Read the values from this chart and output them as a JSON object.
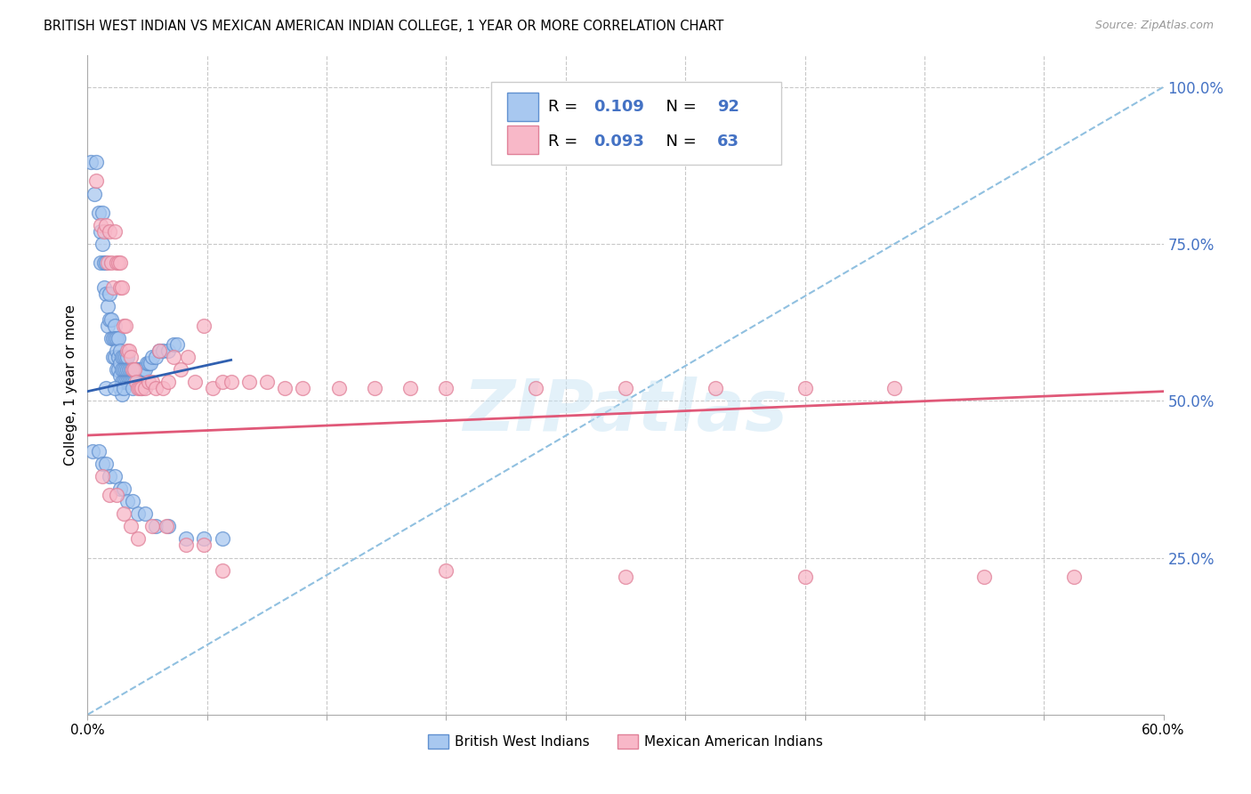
{
  "title": "BRITISH WEST INDIAN VS MEXICAN AMERICAN INDIAN COLLEGE, 1 YEAR OR MORE CORRELATION CHART",
  "source": "Source: ZipAtlas.com",
  "ylabel": "College, 1 year or more",
  "xmin": 0.0,
  "xmax": 0.6,
  "ymin": 0.0,
  "ymax": 1.05,
  "color_blue": "#A8C8F0",
  "color_pink": "#F8B8C8",
  "color_blue_edge": "#6090D0",
  "color_pink_edge": "#E08098",
  "color_trendline_blue": "#3060B0",
  "color_trendline_pink": "#E05878",
  "color_dashed": "#90C0E0",
  "color_grid": "#C8C8C8",
  "color_right_axis": "#4472C4",
  "watermark": "ZIPatlas",
  "label1": "British West Indians",
  "label2": "Mexican American Indians",
  "trendline_bwi_x0": 0.0,
  "trendline_bwi_y0": 0.515,
  "trendline_bwi_x1": 0.08,
  "trendline_bwi_y1": 0.565,
  "trendline_mai_x0": 0.0,
  "trendline_mai_y0": 0.445,
  "trendline_mai_x1": 0.6,
  "trendline_mai_y1": 0.515,
  "bwi_x": [
    0.002,
    0.004,
    0.005,
    0.006,
    0.007,
    0.007,
    0.008,
    0.008,
    0.009,
    0.009,
    0.01,
    0.01,
    0.011,
    0.011,
    0.012,
    0.012,
    0.013,
    0.013,
    0.014,
    0.014,
    0.015,
    0.015,
    0.015,
    0.016,
    0.016,
    0.016,
    0.017,
    0.017,
    0.017,
    0.018,
    0.018,
    0.018,
    0.018,
    0.019,
    0.019,
    0.019,
    0.019,
    0.02,
    0.02,
    0.02,
    0.021,
    0.021,
    0.021,
    0.022,
    0.022,
    0.022,
    0.023,
    0.023,
    0.024,
    0.024,
    0.025,
    0.025,
    0.026,
    0.026,
    0.027,
    0.028,
    0.029,
    0.03,
    0.031,
    0.032,
    0.033,
    0.034,
    0.035,
    0.036,
    0.038,
    0.04,
    0.042,
    0.045,
    0.048,
    0.05,
    0.003,
    0.006,
    0.008,
    0.01,
    0.012,
    0.015,
    0.018,
    0.02,
    0.022,
    0.025,
    0.028,
    0.032,
    0.038,
    0.045,
    0.055,
    0.065,
    0.075,
    0.01,
    0.015,
    0.02,
    0.025,
    0.03
  ],
  "bwi_y": [
    0.88,
    0.83,
    0.88,
    0.8,
    0.77,
    0.72,
    0.8,
    0.75,
    0.72,
    0.68,
    0.72,
    0.67,
    0.65,
    0.62,
    0.67,
    0.63,
    0.63,
    0.6,
    0.6,
    0.57,
    0.62,
    0.6,
    0.57,
    0.6,
    0.58,
    0.55,
    0.6,
    0.57,
    0.55,
    0.58,
    0.56,
    0.54,
    0.52,
    0.57,
    0.55,
    0.53,
    0.51,
    0.57,
    0.55,
    0.53,
    0.57,
    0.55,
    0.53,
    0.57,
    0.55,
    0.53,
    0.55,
    0.53,
    0.55,
    0.53,
    0.55,
    0.53,
    0.55,
    0.53,
    0.55,
    0.55,
    0.55,
    0.55,
    0.55,
    0.55,
    0.56,
    0.56,
    0.56,
    0.57,
    0.57,
    0.58,
    0.58,
    0.58,
    0.59,
    0.59,
    0.42,
    0.42,
    0.4,
    0.4,
    0.38,
    0.38,
    0.36,
    0.36,
    0.34,
    0.34,
    0.32,
    0.32,
    0.3,
    0.3,
    0.28,
    0.28,
    0.28,
    0.52,
    0.52,
    0.52,
    0.52,
    0.52
  ],
  "mai_x": [
    0.005,
    0.007,
    0.009,
    0.01,
    0.011,
    0.012,
    0.013,
    0.014,
    0.015,
    0.016,
    0.017,
    0.018,
    0.018,
    0.019,
    0.02,
    0.021,
    0.022,
    0.023,
    0.024,
    0.025,
    0.026,
    0.027,
    0.028,
    0.029,
    0.03,
    0.032,
    0.034,
    0.036,
    0.038,
    0.04,
    0.042,
    0.045,
    0.048,
    0.052,
    0.056,
    0.06,
    0.065,
    0.07,
    0.075,
    0.08,
    0.09,
    0.1,
    0.11,
    0.12,
    0.14,
    0.16,
    0.18,
    0.2,
    0.25,
    0.3,
    0.35,
    0.4,
    0.45,
    0.008,
    0.012,
    0.016,
    0.02,
    0.024,
    0.028,
    0.036,
    0.044,
    0.055,
    0.065,
    0.075,
    0.2,
    0.3,
    0.4,
    0.5,
    0.55
  ],
  "mai_y": [
    0.85,
    0.78,
    0.77,
    0.78,
    0.72,
    0.77,
    0.72,
    0.68,
    0.77,
    0.72,
    0.72,
    0.68,
    0.72,
    0.68,
    0.62,
    0.62,
    0.58,
    0.58,
    0.57,
    0.55,
    0.55,
    0.53,
    0.52,
    0.52,
    0.52,
    0.52,
    0.53,
    0.53,
    0.52,
    0.58,
    0.52,
    0.53,
    0.57,
    0.55,
    0.57,
    0.53,
    0.62,
    0.52,
    0.53,
    0.53,
    0.53,
    0.53,
    0.52,
    0.52,
    0.52,
    0.52,
    0.52,
    0.52,
    0.52,
    0.52,
    0.52,
    0.52,
    0.52,
    0.38,
    0.35,
    0.35,
    0.32,
    0.3,
    0.28,
    0.3,
    0.3,
    0.27,
    0.27,
    0.23,
    0.23,
    0.22,
    0.22,
    0.22,
    0.22
  ]
}
